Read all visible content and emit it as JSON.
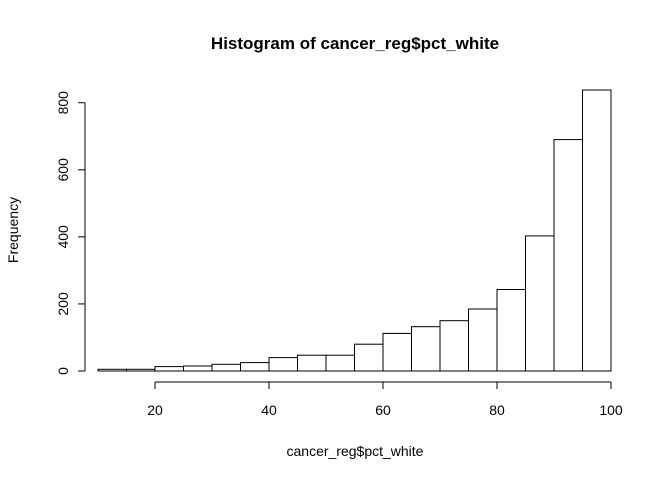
{
  "chart_data": {
    "type": "bar",
    "title": "Histogram of cancer_reg$pct_white",
    "xlabel": "cancer_reg$pct_white",
    "ylabel": "Frequency",
    "bin_edges": [
      10,
      15,
      20,
      25,
      30,
      35,
      40,
      45,
      50,
      55,
      60,
      65,
      70,
      75,
      80,
      85,
      90,
      95,
      100
    ],
    "values": [
      5,
      5,
      13,
      15,
      20,
      25,
      40,
      47,
      47,
      80,
      112,
      132,
      150,
      185,
      243,
      403,
      690,
      838
    ],
    "xlim": [
      10,
      100
    ],
    "ylim": [
      0,
      838
    ],
    "x_ticks": [
      20,
      40,
      60,
      80,
      100
    ],
    "y_ticks": [
      0,
      200,
      400,
      600,
      800
    ],
    "grid": false,
    "legend": "none"
  }
}
